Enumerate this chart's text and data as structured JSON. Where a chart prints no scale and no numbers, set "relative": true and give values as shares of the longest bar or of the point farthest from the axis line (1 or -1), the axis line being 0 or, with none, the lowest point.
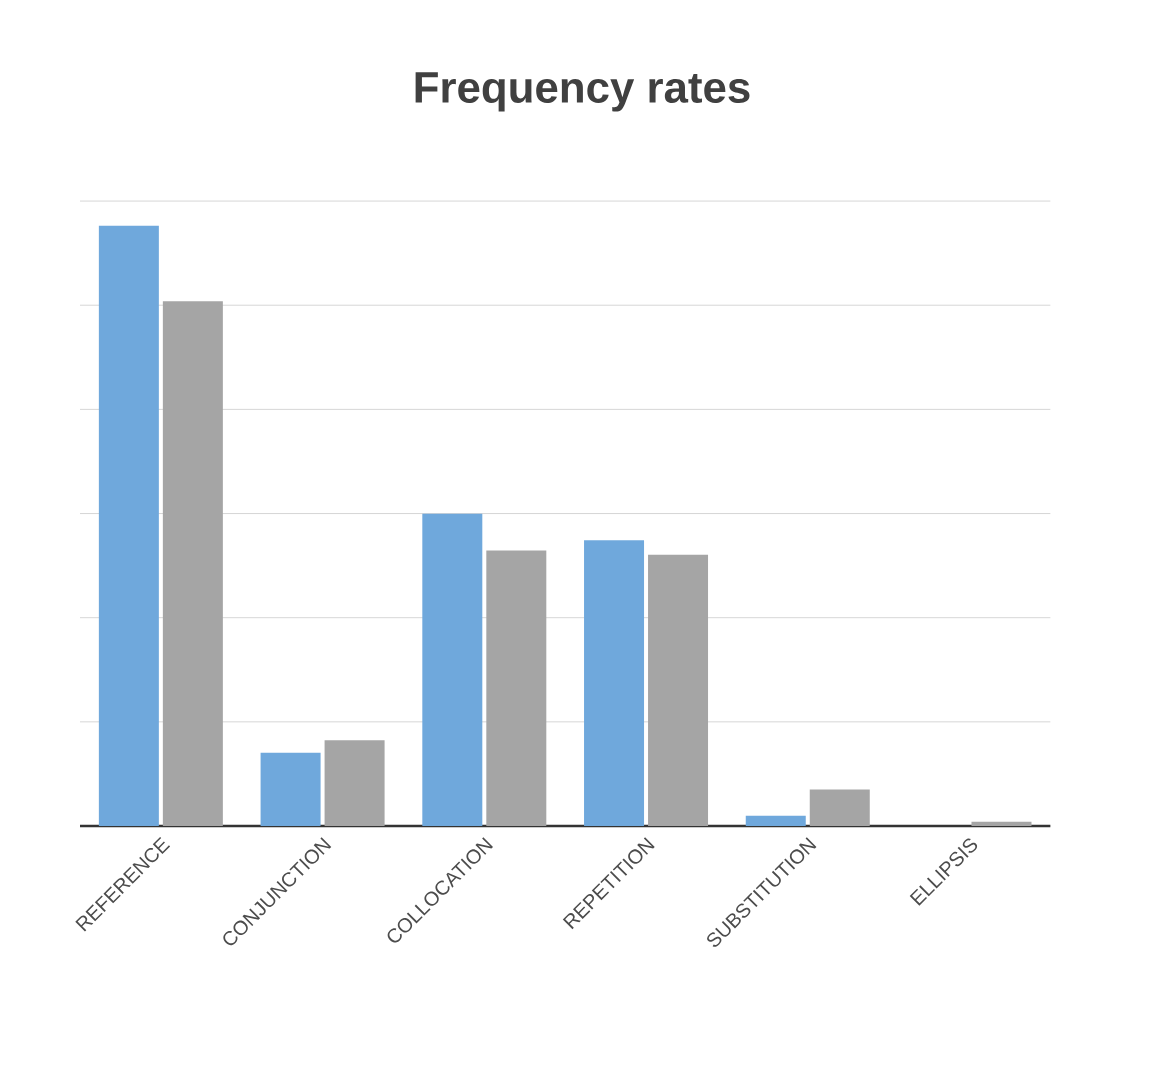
{
  "chart_data": {
    "type": "bar",
    "title": "Frequency rates",
    "relative": true,
    "grid": "y",
    "categories": [
      "REFERENCE",
      "CONJUNCTION",
      "COLLOCATION",
      "REPETITION",
      "SUBSTITUTION",
      "ELLIPSIS"
    ],
    "series": [
      {
        "color": "#6fa8dc",
        "values": [
          1,
          0.122,
          0.52,
          0.476,
          0.017,
          null
        ]
      },
      {
        "color": "#a5a5a5",
        "values": [
          0.874,
          0.143,
          0.459,
          0.452,
          0.061,
          0.007
        ]
      }
    ]
  }
}
